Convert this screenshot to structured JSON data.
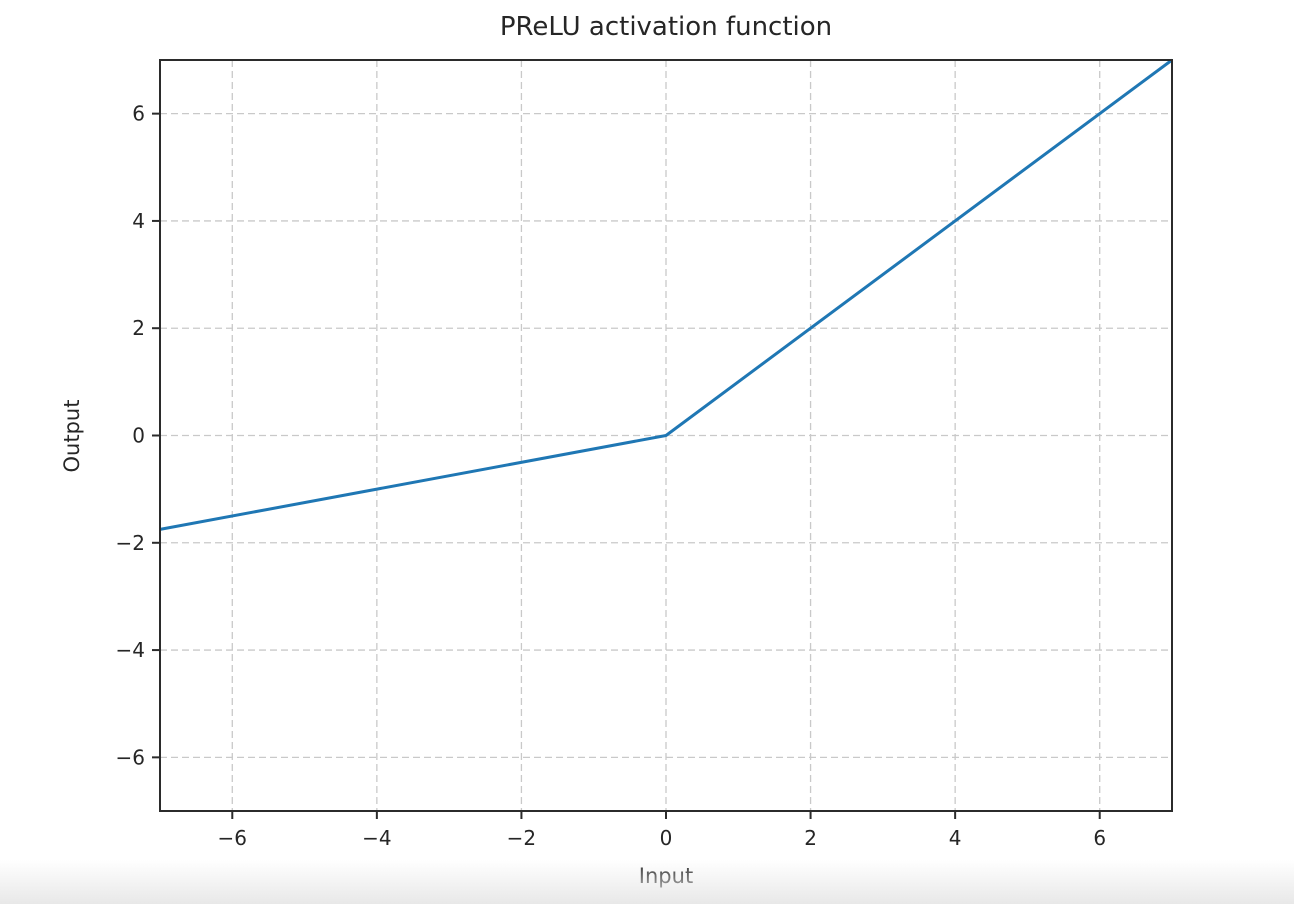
{
  "chart_data": {
    "type": "line",
    "title": "PReLU activation function",
    "xlabel": "Input",
    "ylabel": "Output",
    "xlim": [
      -7,
      7
    ],
    "ylim": [
      -7,
      7
    ],
    "xticks": [
      -6,
      -4,
      -2,
      0,
      2,
      4,
      6
    ],
    "xtick_labels": [
      "−6",
      "−4",
      "−2",
      "0",
      "2",
      "4",
      "6"
    ],
    "yticks": [
      -6,
      -4,
      -2,
      0,
      2,
      4,
      6
    ],
    "ytick_labels": [
      "−6",
      "−4",
      "−2",
      "0",
      "2",
      "4",
      "6"
    ],
    "grid": true,
    "grid_linestyle": "dashed",
    "legend": false,
    "series": [
      {
        "name": "PReLU",
        "color": "#1f77b4",
        "points": [
          [
            -7,
            -1.75
          ],
          [
            0,
            0
          ],
          [
            7,
            7
          ]
        ]
      }
    ]
  },
  "style": {
    "line_color": "#1f77b4",
    "grid_color": "#c9c9c9",
    "spine_color": "#2b2b2b",
    "tick_color": "#2b2b2b",
    "text_color": "#262626",
    "background": "#ffffff"
  }
}
